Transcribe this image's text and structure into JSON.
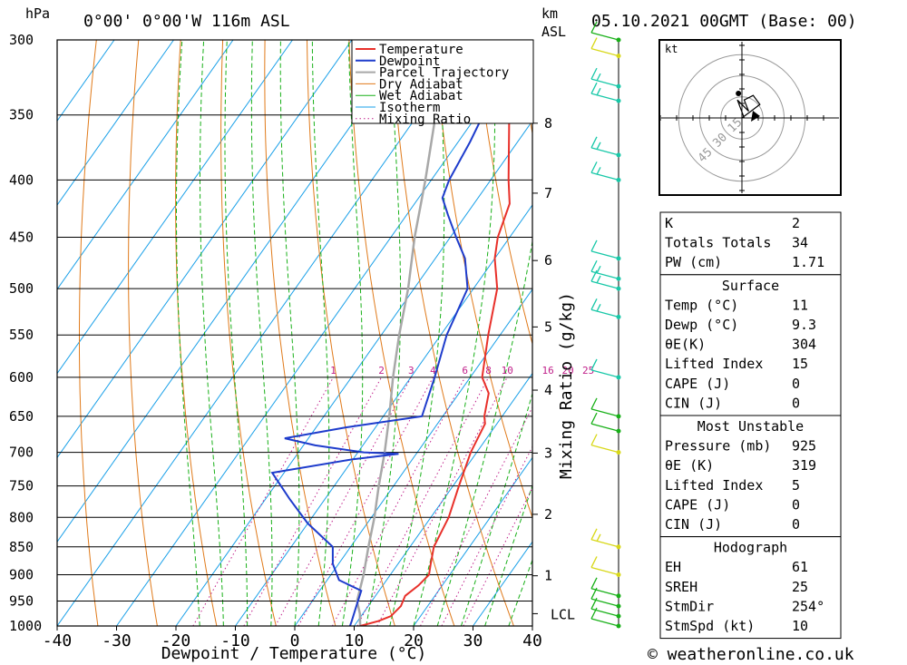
{
  "header": {
    "pressure_unit": "hPa",
    "location": "0°00' 0°00'W  116m  ASL",
    "km_unit": "km",
    "km_sub": "ASL",
    "datetime": "05.10.2021  00GMT  (Base: 00)"
  },
  "footer": {
    "credit": "© weatheronline.co.uk"
  },
  "colors": {
    "temperature": "#e8302a",
    "dewpoint": "#1e3ccc",
    "parcel": "#a8a8a8",
    "dry_adiabat": "#e07a1a",
    "wet_adiabat": "#18b018",
    "isotherm": "#1aa0e8",
    "mixing_ratio": "#c0208a"
  },
  "chart_data": {
    "type": "line",
    "xlabel": "Dewpoint / Temperature (°C)",
    "xlim": [
      -40,
      40
    ],
    "x_ticks": [
      -40,
      -30,
      -20,
      -10,
      0,
      10,
      20,
      30,
      40
    ],
    "ylabel": "hPa",
    "ylim": [
      1000,
      300
    ],
    "y_ticks": [
      300,
      350,
      400,
      450,
      500,
      550,
      600,
      650,
      700,
      750,
      800,
      850,
      900,
      950,
      1000
    ],
    "y_scale": "log",
    "grid": true,
    "km_ticks": [
      {
        "label": "1",
        "p": 902
      },
      {
        "label": "2",
        "p": 795
      },
      {
        "label": "3",
        "p": 701
      },
      {
        "label": "4",
        "p": 616
      },
      {
        "label": "5",
        "p": 541
      },
      {
        "label": "6",
        "p": 472
      },
      {
        "label": "7",
        "p": 411
      },
      {
        "label": "8",
        "p": 356
      }
    ],
    "lcl": {
      "label": "LCL",
      "p": 975
    },
    "right_axis_label": "Mixing Ratio (g/kg)",
    "mixing_ratio_labels": [
      "1",
      "2",
      "3",
      "4",
      "6",
      "8",
      "10",
      "16",
      "20",
      "25"
    ],
    "mixing_ratio_values": [
      1,
      2,
      3,
      4,
      6,
      8,
      10,
      16,
      20,
      25
    ],
    "legend": {
      "position": "top-right",
      "entries": [
        "Temperature",
        "Dewpoint",
        "Parcel Trajectory",
        "Dry Adiabat",
        "Wet Adiabat",
        "Isotherm",
        "Mixing Ratio"
      ]
    },
    "series": [
      {
        "name": "Temperature",
        "points": [
          [
            11,
            1000
          ],
          [
            13.5,
            990
          ],
          [
            15,
            980
          ],
          [
            15.5,
            960
          ],
          [
            15,
            940
          ],
          [
            16,
            920
          ],
          [
            16.5,
            900
          ],
          [
            15.5,
            880
          ],
          [
            14,
            850
          ],
          [
            13,
            800
          ],
          [
            11,
            750
          ],
          [
            9,
            700
          ],
          [
            8,
            660
          ],
          [
            7,
            650
          ],
          [
            5,
            620
          ],
          [
            2,
            600
          ],
          [
            -2,
            550
          ],
          [
            -6,
            500
          ],
          [
            -10,
            470
          ],
          [
            -12,
            450
          ],
          [
            -14,
            420
          ],
          [
            -17,
            400
          ],
          [
            -23,
            360
          ],
          [
            -28,
            330
          ],
          [
            -32,
            300
          ]
        ]
      },
      {
        "name": "Dewpoint",
        "points": [
          [
            9.3,
            1000
          ],
          [
            9,
            990
          ],
          [
            8,
            960
          ],
          [
            7,
            930
          ],
          [
            2,
            910
          ],
          [
            -1,
            880
          ],
          [
            -3,
            850
          ],
          [
            -10,
            810
          ],
          [
            -16,
            770
          ],
          [
            -22,
            730
          ],
          [
            -10,
            710
          ],
          [
            -3,
            702
          ],
          [
            -9,
            700
          ],
          [
            -18,
            690
          ],
          [
            -24,
            680
          ],
          [
            -15,
            665
          ],
          [
            -3.5,
            650
          ],
          [
            -6,
            600
          ],
          [
            -9,
            550
          ],
          [
            -11,
            500
          ],
          [
            -15,
            470
          ],
          [
            -19,
            450
          ],
          [
            -23,
            430
          ],
          [
            -26,
            415
          ],
          [
            -27,
            400
          ],
          [
            -28,
            370
          ],
          [
            -29,
            350
          ],
          [
            -35,
            330
          ],
          [
            -42,
            300
          ]
        ]
      },
      {
        "name": "Parcel Trajectory",
        "points": [
          [
            11,
            1000
          ],
          [
            9.5,
            975
          ],
          [
            7.5,
            950
          ],
          [
            5.5,
            900
          ],
          [
            3,
            850
          ],
          [
            0.5,
            800
          ],
          [
            -2.5,
            750
          ],
          [
            -5.5,
            700
          ],
          [
            -9,
            650
          ],
          [
            -13,
            600
          ],
          [
            -17,
            550
          ],
          [
            -21,
            500
          ],
          [
            -26,
            450
          ],
          [
            -31,
            400
          ],
          [
            -37,
            350
          ],
          [
            -44,
            300
          ]
        ]
      }
    ],
    "wind_barbs": [
      {
        "p": 1000,
        "speed": 10
      },
      {
        "p": 980,
        "speed": 10
      },
      {
        "p": 960,
        "speed": 10
      },
      {
        "p": 940,
        "speed": 10
      },
      {
        "p": 900,
        "speed": 10
      },
      {
        "p": 850,
        "speed": 15
      },
      {
        "p": 700,
        "speed": 10
      },
      {
        "p": 670,
        "speed": 10
      },
      {
        "p": 650,
        "speed": 10
      },
      {
        "p": 600,
        "speed": 10
      },
      {
        "p": 530,
        "speed": 15
      },
      {
        "p": 500,
        "speed": 15
      },
      {
        "p": 490,
        "speed": 15
      },
      {
        "p": 470,
        "speed": 10
      },
      {
        "p": 400,
        "speed": 15
      },
      {
        "p": 380,
        "speed": 15
      },
      {
        "p": 340,
        "speed": 15
      },
      {
        "p": 330,
        "speed": 15
      },
      {
        "p": 300,
        "speed": 10
      },
      {
        "p": 310,
        "speed": 10
      }
    ]
  },
  "hodograph": {
    "unit": "kt",
    "ring_labels": [
      "15",
      "30",
      "45"
    ],
    "ring_values": [
      15,
      30,
      45
    ],
    "trace": [
      [
        0,
        0
      ],
      [
        4,
        3
      ],
      [
        8,
        6
      ],
      [
        5,
        10
      ],
      [
        1,
        8
      ],
      [
        3,
        3
      ],
      [
        -2,
        8
      ],
      [
        1,
        0
      ]
    ],
    "storm_motion": [
      -9.6,
      -2.8
    ]
  },
  "indices": {
    "rows": [
      {
        "label": "K",
        "value": "2"
      },
      {
        "label": "Totals Totals",
        "value": "34"
      },
      {
        "label": "PW (cm)",
        "value": "1.71"
      }
    ]
  },
  "surface": {
    "title": "Surface",
    "rows": [
      {
        "label": "Temp (°C)",
        "value": "11"
      },
      {
        "label": "Dewp (°C)",
        "value": "9.3"
      },
      {
        "label": "θE(K)",
        "value": "304"
      },
      {
        "label": "Lifted Index",
        "value": "15"
      },
      {
        "label": "CAPE (J)",
        "value": "0"
      },
      {
        "label": "CIN (J)",
        "value": "0"
      }
    ]
  },
  "most_unstable": {
    "title": "Most Unstable",
    "rows": [
      {
        "label": "Pressure (mb)",
        "value": "925"
      },
      {
        "label": "θE (K)",
        "value": "319"
      },
      {
        "label": "Lifted Index",
        "value": "5"
      },
      {
        "label": "CAPE (J)",
        "value": "0"
      },
      {
        "label": "CIN (J)",
        "value": "0"
      }
    ]
  },
  "hodograph_table": {
    "title": "Hodograph",
    "rows": [
      {
        "label": "EH",
        "value": "61"
      },
      {
        "label": "SREH",
        "value": "25"
      },
      {
        "label": "StmDir",
        "value": "254°"
      },
      {
        "label": "StmSpd (kt)",
        "value": "10"
      }
    ]
  }
}
